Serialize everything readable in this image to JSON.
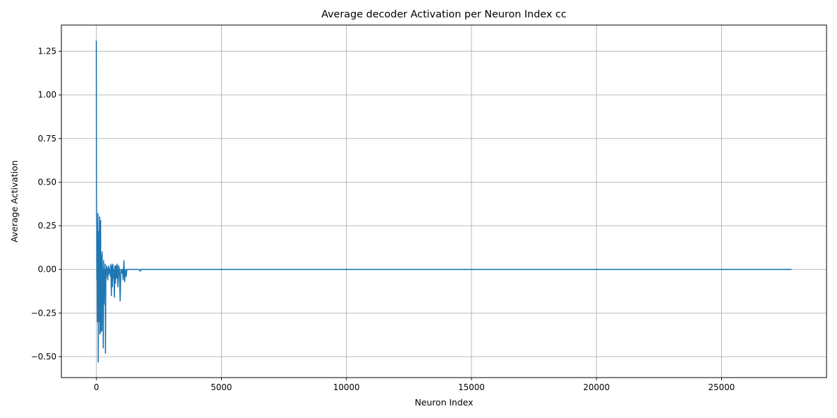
{
  "chart_data": {
    "type": "line",
    "title": "Average decoder Activation per Neuron Index cc",
    "xlabel": "Neuron Index",
    "ylabel": "Average Activation",
    "xlim": [
      -1400,
      29200
    ],
    "ylim": [
      -0.62,
      1.4
    ],
    "xticks": [
      0,
      5000,
      10000,
      15000,
      20000,
      25000
    ],
    "yticks": [
      -0.5,
      -0.25,
      0.0,
      0.25,
      0.5,
      0.75,
      1.0,
      1.25
    ],
    "xtick_labels": [
      "0",
      "5000",
      "10000",
      "15000",
      "20000",
      "25000"
    ],
    "ytick_labels": [
      "−0.50",
      "−0.25",
      "0.00",
      "0.25",
      "0.50",
      "0.75",
      "1.00",
      "1.25"
    ],
    "grid": true,
    "series": [
      {
        "color": "#1f77b4",
        "x": [
          0,
          8,
          16,
          24,
          32,
          40,
          48,
          56,
          64,
          72,
          80,
          88,
          96,
          104,
          112,
          120,
          130,
          140,
          150,
          160,
          170,
          180,
          190,
          200,
          210,
          220,
          230,
          240,
          250,
          262,
          275,
          290,
          305,
          320,
          335,
          350,
          365,
          380,
          395,
          410,
          425,
          440,
          455,
          470,
          485,
          500,
          520,
          540,
          560,
          580,
          600,
          620,
          640,
          660,
          680,
          700,
          720,
          740,
          760,
          780,
          800,
          830,
          860,
          890,
          920,
          950,
          980,
          1010,
          1040,
          1070,
          1100,
          1130,
          1160,
          1190,
          1220,
          1250,
          1300,
          1400,
          1500,
          1600,
          1700,
          1760,
          1780,
          1800,
          2000,
          27800
        ],
        "y": [
          1.31,
          0.35,
          0.25,
          -0.06,
          0.2,
          -0.3,
          0.1,
          -0.27,
          0.32,
          -0.53,
          0.22,
          -0.05,
          0.2,
          -0.3,
          0.1,
          -0.18,
          0.3,
          -0.37,
          0.2,
          -0.1,
          0.28,
          -0.36,
          0.05,
          -0.2,
          0.08,
          -0.35,
          0.1,
          -0.05,
          -0.15,
          0.0,
          -0.45,
          0.05,
          -0.2,
          0.0,
          -0.1,
          0.03,
          -0.48,
          0.0,
          -0.05,
          0.02,
          -0.02,
          0.0,
          -0.06,
          0.01,
          -0.03,
          0.02,
          -0.02,
          0.0,
          -0.04,
          0.03,
          -0.15,
          0.02,
          -0.1,
          0.03,
          -0.05,
          0.0,
          -0.16,
          0.02,
          -0.08,
          0.02,
          -0.05,
          0.03,
          -0.1,
          0.02,
          0.0,
          -0.18,
          0.0,
          -0.02,
          0.0,
          -0.06,
          0.05,
          -0.07,
          0.0,
          -0.04,
          0.0,
          0.0,
          0.0,
          0.0,
          0.0,
          0.0,
          0.0,
          -0.01,
          0.0,
          0.0,
          0.0,
          0.0
        ]
      }
    ]
  }
}
